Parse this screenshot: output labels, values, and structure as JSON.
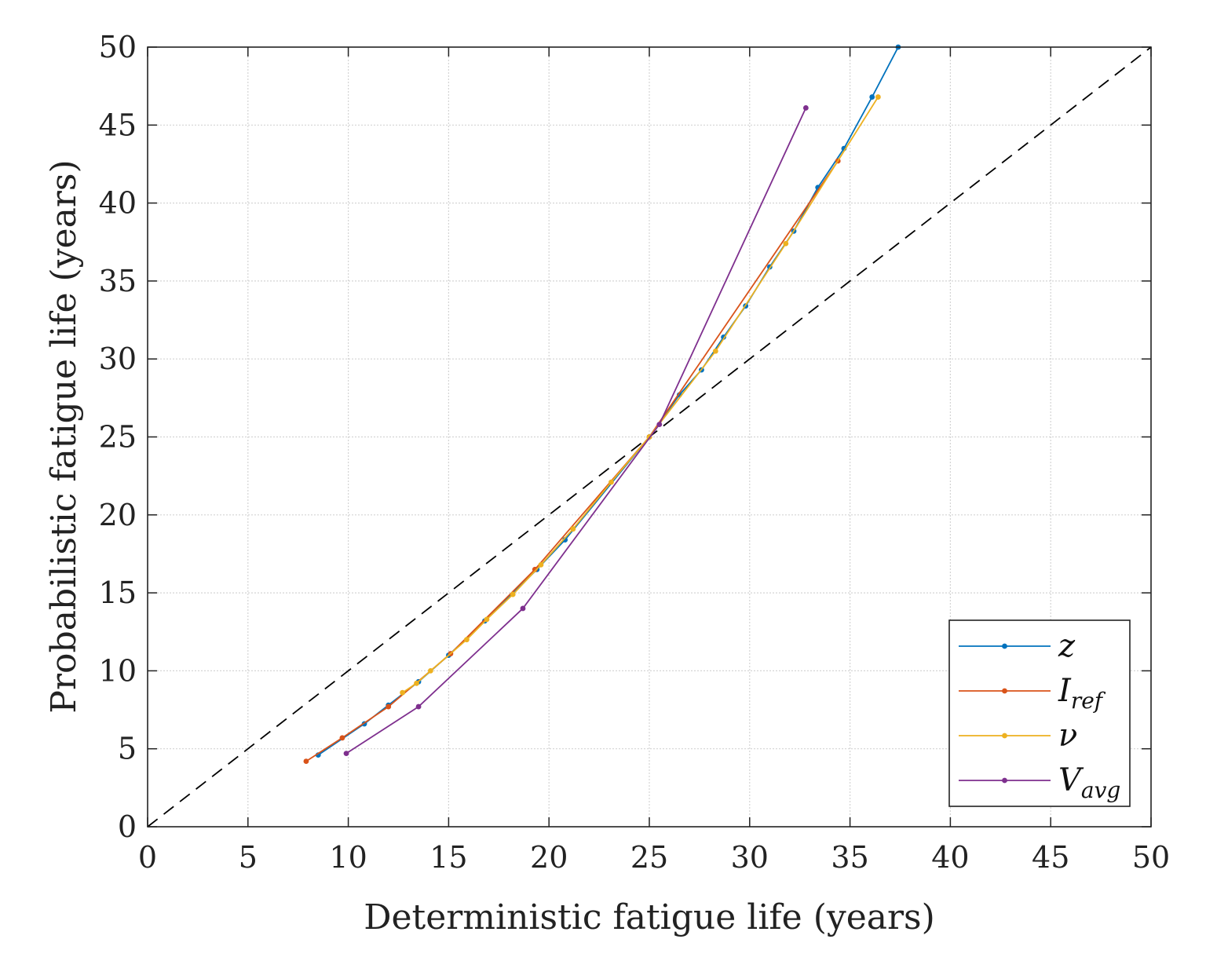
{
  "chart_data": {
    "type": "line",
    "title": "",
    "xlabel": "Deterministic fatigue life (years)",
    "ylabel": "Probabilistic fatigue life (years)",
    "xlim": [
      0,
      50
    ],
    "ylim": [
      0,
      50
    ],
    "xticks": [
      "0",
      "5",
      "10",
      "15",
      "20",
      "25",
      "30",
      "35",
      "40",
      "45",
      "50"
    ],
    "yticks": [
      "0",
      "5",
      "10",
      "15",
      "20",
      "25",
      "30",
      "35",
      "40",
      "45",
      "50"
    ],
    "grid": true,
    "legend_position": "bottom-right",
    "reference_line": {
      "name": "y = x",
      "x": [
        0,
        50
      ],
      "y": [
        0,
        50
      ],
      "style": "dashed",
      "color": "#000000"
    },
    "series": [
      {
        "name": "z",
        "label_main": "z",
        "label_sub": "",
        "color": "#0072BD",
        "x": [
          8.5,
          10.8,
          12.0,
          13.5,
          15.0,
          16.8,
          19.4,
          20.8,
          25.0,
          26.5,
          27.6,
          28.7,
          29.8,
          31.0,
          32.2,
          33.4,
          34.7,
          36.1,
          37.4
        ],
        "y": [
          4.6,
          6.6,
          7.8,
          9.3,
          11.0,
          13.2,
          16.5,
          18.4,
          25.0,
          27.7,
          29.3,
          31.4,
          33.4,
          35.9,
          38.2,
          41.0,
          43.5,
          46.8,
          50.0
        ]
      },
      {
        "name": "I_ref",
        "label_main": "I",
        "label_sub": "ref",
        "color": "#D95319",
        "x": [
          7.9,
          9.7,
          12.0,
          15.1,
          19.3,
          25.0,
          34.4
        ],
        "y": [
          4.2,
          5.7,
          7.7,
          11.1,
          16.5,
          25.0,
          42.7
        ]
      },
      {
        "name": "nu",
        "label_main": "ν",
        "label_sub": "",
        "color": "#EDB120",
        "x": [
          12.7,
          13.4,
          14.1,
          15.9,
          16.9,
          18.2,
          19.6,
          21.2,
          23.1,
          25.0,
          28.3,
          31.8,
          36.4
        ],
        "y": [
          8.6,
          9.2,
          10.0,
          12.0,
          13.3,
          14.9,
          16.8,
          19.1,
          22.1,
          25.0,
          30.5,
          37.4,
          46.8
        ]
      },
      {
        "name": "V_avg",
        "label_main": "V",
        "label_sub": "avg",
        "color": "#7E2F8E",
        "x": [
          9.9,
          13.5,
          18.7,
          25.5,
          32.8
        ],
        "y": [
          4.7,
          7.7,
          14.0,
          25.8,
          46.1
        ]
      }
    ]
  }
}
